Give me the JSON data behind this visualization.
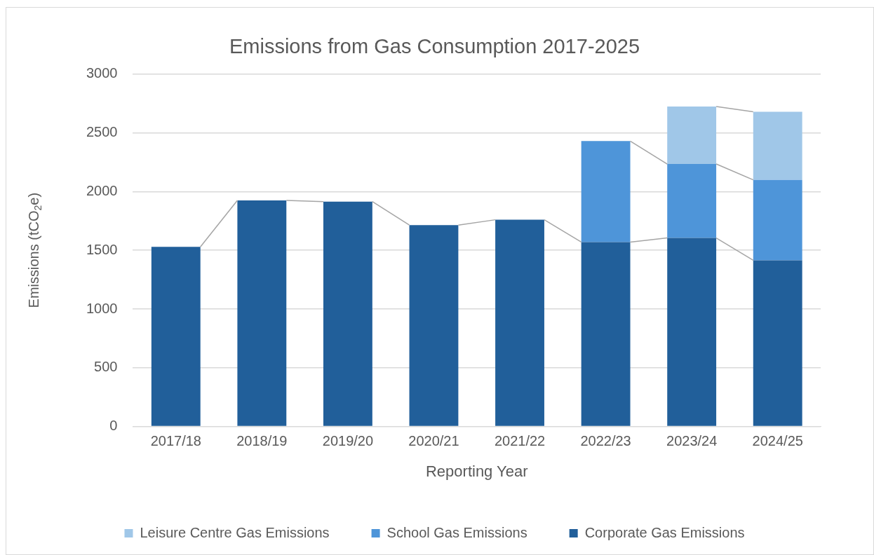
{
  "chart_data": {
    "type": "bar",
    "title": "Emissions from Gas Consumption 2017-2025",
    "xlabel": "Reporting Year",
    "ylabel": "Emissions (tCO$_{2}$e)",
    "categories": [
      "2017/18",
      "2018/19",
      "2019/20",
      "2020/21",
      "2021/22",
      "2022/23",
      "2023/24",
      "2024/25"
    ],
    "stacked": true,
    "series": [
      {
        "name": "Corporate Gas Emissions",
        "color": "#215f9a",
        "values": [
          1530,
          1925,
          1915,
          1715,
          1760,
          1570,
          1605,
          1415
        ]
      },
      {
        "name": "School Gas Emissions",
        "color": "#4e95d9",
        "values": [
          null,
          null,
          null,
          null,
          null,
          860,
          630,
          685
        ]
      },
      {
        "name": "Leisure Centre Gas Emissions",
        "color": "#a0c7e8",
        "values": [
          null,
          null,
          null,
          null,
          null,
          null,
          490,
          580
        ]
      }
    ],
    "ylim": [
      0,
      3000
    ],
    "yticks": [
      0,
      500,
      1000,
      1500,
      2000,
      2500,
      3000
    ],
    "grid": "y",
    "legend": "bottom"
  }
}
